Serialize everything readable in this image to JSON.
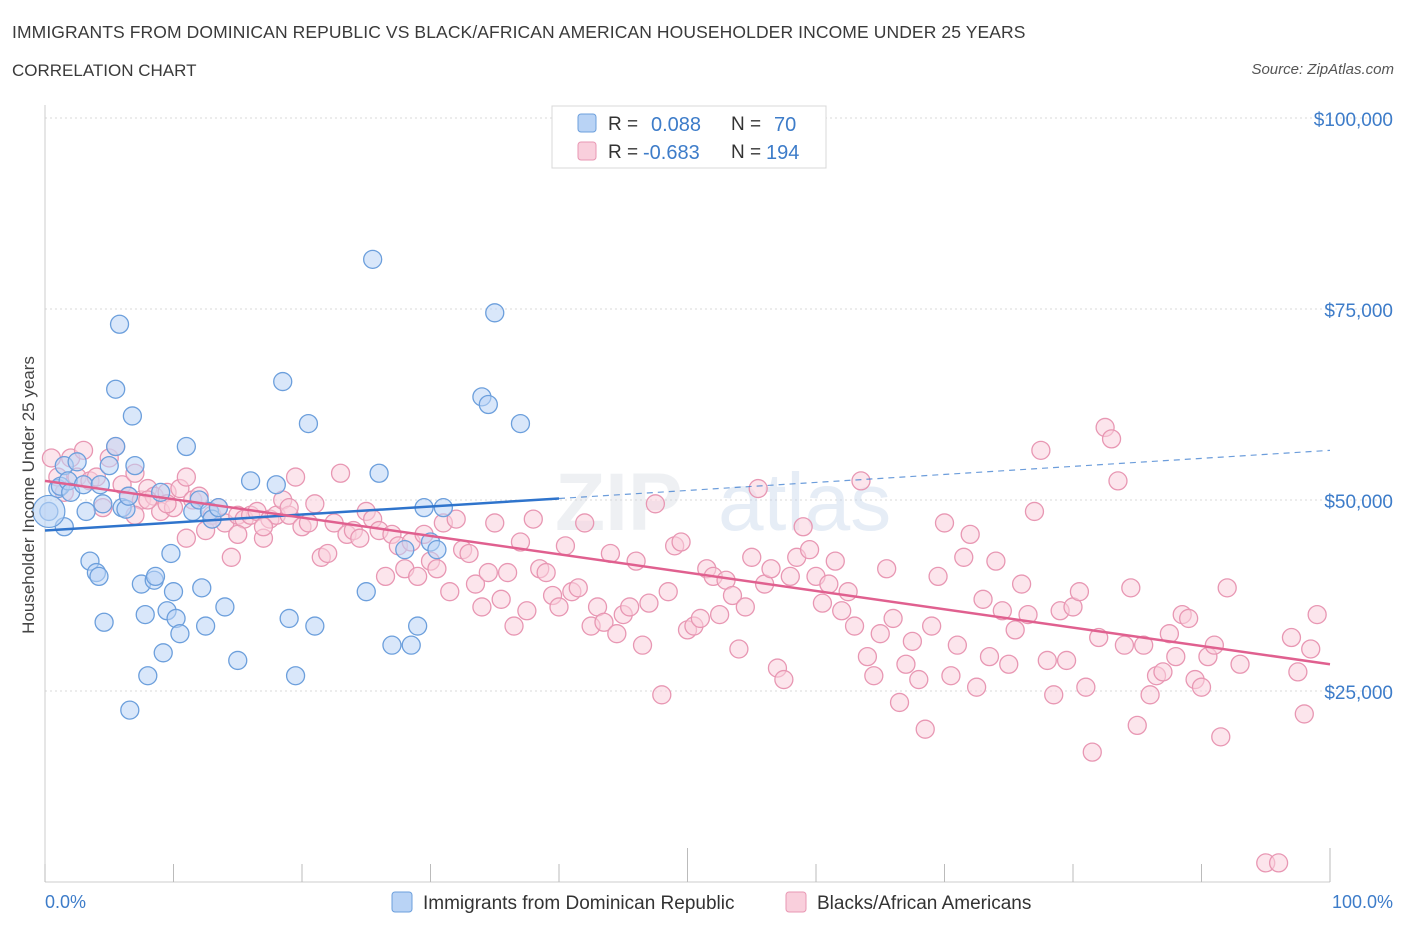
{
  "header": {
    "title": "IMMIGRANTS FROM DOMINICAN REPUBLIC VS BLACK/AFRICAN AMERICAN HOUSEHOLDER INCOME UNDER 25 YEARS",
    "subtitle": "CORRELATION CHART",
    "source": "Source: ZipAtlas.com"
  },
  "colors": {
    "blue_fill": "#b9d3f5",
    "blue_stroke": "#6c9fdc",
    "blue_line": "#2f74cc",
    "pink_fill": "#f9cfdc",
    "pink_stroke": "#e897b3",
    "pink_line": "#e0608f",
    "tick_text": "#3d7cc9",
    "grid": "#d9d9d9"
  },
  "legend": {
    "r_label": "R =",
    "n_label": "N =",
    "blue": {
      "r": "0.088",
      "n": "70"
    },
    "pink": {
      "r": "-0.683",
      "n": "194"
    }
  },
  "watermark": {
    "zip": "ZIP",
    "atlas": "atlas"
  },
  "chart_data": {
    "type": "scatter",
    "title": "IMMIGRANTS FROM DOMINICAN REPUBLIC VS BLACK/AFRICAN AMERICAN HOUSEHOLDER INCOME UNDER 25 YEARS",
    "subtitle": "CORRELATION CHART",
    "xlabel": "",
    "ylabel": "Householder Income Under 25 years",
    "xlim": [
      0,
      100
    ],
    "ylim": [
      0,
      100000
    ],
    "x_tick_labels": [
      "0.0%",
      "100.0%"
    ],
    "y_ticks": [
      25000,
      50000,
      75000,
      100000
    ],
    "y_tick_labels": [
      "$25,000",
      "$50,000",
      "$75,000",
      "$100,000"
    ],
    "grid": true,
    "legend_position": "top-center",
    "series": [
      {
        "name": "Immigrants from Dominican Republic",
        "color": "#6c9fdc",
        "r": 0.088,
        "n": 70,
        "trend": {
          "x": [
            0,
            40
          ],
          "y": [
            46000,
            50200
          ],
          "dashed_to": [
            100,
            56500
          ]
        },
        "points": [
          [
            0.3,
            48500
          ],
          [
            1,
            51500
          ],
          [
            1.2,
            51800
          ],
          [
            1.5,
            54500
          ],
          [
            1.8,
            52500
          ],
          [
            2,
            51000
          ],
          [
            1.5,
            46500
          ],
          [
            2.5,
            55000
          ],
          [
            3,
            52000
          ],
          [
            3.5,
            42000
          ],
          [
            3.2,
            48500
          ],
          [
            4,
            40500
          ],
          [
            4.2,
            40000
          ],
          [
            4.3,
            52000
          ],
          [
            4.5,
            49500
          ],
          [
            4.6,
            34000
          ],
          [
            5,
            54500
          ],
          [
            5.5,
            64500
          ],
          [
            5.5,
            57000
          ],
          [
            5.8,
            73000
          ],
          [
            6,
            49000
          ],
          [
            6.3,
            48800
          ],
          [
            6.5,
            50500
          ],
          [
            6.6,
            22500
          ],
          [
            6.8,
            61000
          ],
          [
            7,
            54500
          ],
          [
            7.5,
            39000
          ],
          [
            7.8,
            35000
          ],
          [
            8,
            27000
          ],
          [
            8.5,
            39500
          ],
          [
            8.6,
            40000
          ],
          [
            9,
            51000
          ],
          [
            9.2,
            30000
          ],
          [
            9.5,
            35500
          ],
          [
            9.8,
            43000
          ],
          [
            10,
            38000
          ],
          [
            10.2,
            34500
          ],
          [
            10.5,
            32500
          ],
          [
            11,
            57000
          ],
          [
            11.5,
            48500
          ],
          [
            12,
            50000
          ],
          [
            12.2,
            38500
          ],
          [
            12.5,
            33500
          ],
          [
            12.8,
            48500
          ],
          [
            13,
            47500
          ],
          [
            13.5,
            49000
          ],
          [
            14,
            36000
          ],
          [
            15,
            29000
          ],
          [
            16,
            52500
          ],
          [
            18,
            52000
          ],
          [
            18.5,
            65500
          ],
          [
            19,
            34500
          ],
          [
            19.5,
            27000
          ],
          [
            20.5,
            60000
          ],
          [
            21,
            33500
          ],
          [
            25,
            38000
          ],
          [
            25.5,
            81500
          ],
          [
            26,
            53500
          ],
          [
            27,
            31000
          ],
          [
            28,
            43500
          ],
          [
            28.5,
            31000
          ],
          [
            29,
            33500
          ],
          [
            29.5,
            49000
          ],
          [
            30,
            44500
          ],
          [
            30.5,
            43500
          ],
          [
            31,
            49000
          ],
          [
            34,
            63500
          ],
          [
            34.5,
            62500
          ],
          [
            35,
            74500
          ],
          [
            37,
            60000
          ]
        ]
      },
      {
        "name": "Blacks/African Americans",
        "color": "#e897b3",
        "r": -0.683,
        "n": 194,
        "trend": {
          "x": [
            0,
            100
          ],
          "y": [
            52500,
            28500
          ]
        },
        "points": [
          [
            0.5,
            55500
          ],
          [
            1,
            53000
          ],
          [
            1.5,
            51000
          ],
          [
            2,
            55500
          ],
          [
            2.5,
            53000
          ],
          [
            3,
            56500
          ],
          [
            3.5,
            52500
          ],
          [
            4,
            53000
          ],
          [
            4.5,
            49000
          ],
          [
            5,
            55500
          ],
          [
            5.5,
            57000
          ],
          [
            6,
            52000
          ],
          [
            6.5,
            50500
          ],
          [
            7,
            53500
          ],
          [
            7.5,
            50000
          ],
          [
            8,
            51500
          ],
          [
            8.5,
            50500
          ],
          [
            9,
            48500
          ],
          [
            9.5,
            51000
          ],
          [
            10,
            49000
          ],
          [
            10.5,
            51500
          ],
          [
            11,
            53000
          ],
          [
            11.5,
            50000
          ],
          [
            12,
            50500
          ],
          [
            12.5,
            46000
          ],
          [
            13,
            48000
          ],
          [
            13.5,
            49000
          ],
          [
            14,
            47000
          ],
          [
            14.5,
            42500
          ],
          [
            15,
            48000
          ],
          [
            15.5,
            47500
          ],
          [
            16,
            48000
          ],
          [
            16.5,
            48500
          ],
          [
            17,
            45000
          ],
          [
            17.5,
            47500
          ],
          [
            18,
            48000
          ],
          [
            18.5,
            50000
          ],
          [
            19,
            48000
          ],
          [
            19.5,
            53000
          ],
          [
            20,
            46500
          ],
          [
            20.5,
            47000
          ],
          [
            21,
            49500
          ],
          [
            21.5,
            42500
          ],
          [
            22,
            43000
          ],
          [
            22.5,
            47000
          ],
          [
            23,
            53500
          ],
          [
            23.5,
            45500
          ],
          [
            24,
            46000
          ],
          [
            24.5,
            45000
          ],
          [
            25,
            48500
          ],
          [
            25.5,
            47500
          ],
          [
            26,
            46000
          ],
          [
            26.5,
            40000
          ],
          [
            27,
            45500
          ],
          [
            27.5,
            44000
          ],
          [
            28,
            41000
          ],
          [
            28.5,
            44500
          ],
          [
            29,
            40000
          ],
          [
            29.5,
            45500
          ],
          [
            30,
            42000
          ],
          [
            30.5,
            41000
          ],
          [
            31,
            47000
          ],
          [
            31.5,
            38000
          ],
          [
            32,
            47500
          ],
          [
            32.5,
            43500
          ],
          [
            33,
            43000
          ],
          [
            33.5,
            39000
          ],
          [
            34,
            36000
          ],
          [
            34.5,
            40500
          ],
          [
            35,
            47000
          ],
          [
            35.5,
            37000
          ],
          [
            36,
            40500
          ],
          [
            36.5,
            33500
          ],
          [
            37,
            44500
          ],
          [
            37.5,
            35500
          ],
          [
            38,
            47500
          ],
          [
            38.5,
            41000
          ],
          [
            39,
            40500
          ],
          [
            39.5,
            37500
          ],
          [
            40,
            36000
          ],
          [
            40.5,
            44000
          ],
          [
            41,
            38000
          ],
          [
            41.5,
            38500
          ],
          [
            42,
            47000
          ],
          [
            42.5,
            33500
          ],
          [
            43,
            36000
          ],
          [
            43.5,
            34000
          ],
          [
            44,
            43000
          ],
          [
            44.5,
            32500
          ],
          [
            45,
            35000
          ],
          [
            45.5,
            36000
          ],
          [
            46,
            42000
          ],
          [
            46.5,
            31000
          ],
          [
            47,
            36500
          ],
          [
            47.5,
            49500
          ],
          [
            48,
            24500
          ],
          [
            48.5,
            38000
          ],
          [
            49,
            44000
          ],
          [
            49.5,
            44500
          ],
          [
            50,
            33000
          ],
          [
            50.5,
            33500
          ],
          [
            51,
            34500
          ],
          [
            51.5,
            41000
          ],
          [
            52,
            40000
          ],
          [
            52.5,
            35000
          ],
          [
            53,
            39500
          ],
          [
            53.5,
            37500
          ],
          [
            54,
            30500
          ],
          [
            54.5,
            36000
          ],
          [
            55,
            42500
          ],
          [
            55.5,
            51500
          ],
          [
            56,
            39000
          ],
          [
            56.5,
            41000
          ],
          [
            57,
            28000
          ],
          [
            57.5,
            26500
          ],
          [
            58,
            40000
          ],
          [
            58.5,
            42500
          ],
          [
            59,
            46500
          ],
          [
            59.5,
            43500
          ],
          [
            60,
            40000
          ],
          [
            60.5,
            36500
          ],
          [
            61,
            39000
          ],
          [
            61.5,
            42000
          ],
          [
            62,
            35500
          ],
          [
            62.5,
            38000
          ],
          [
            63,
            33500
          ],
          [
            63.5,
            52500
          ],
          [
            64,
            29500
          ],
          [
            64.5,
            27000
          ],
          [
            65,
            32500
          ],
          [
            65.5,
            41000
          ],
          [
            66,
            34500
          ],
          [
            66.5,
            23500
          ],
          [
            67,
            28500
          ],
          [
            67.5,
            31500
          ],
          [
            68,
            26500
          ],
          [
            68.5,
            20000
          ],
          [
            69,
            33500
          ],
          [
            69.5,
            40000
          ],
          [
            70,
            47000
          ],
          [
            70.5,
            27000
          ],
          [
            71,
            31000
          ],
          [
            71.5,
            42500
          ],
          [
            72,
            45500
          ],
          [
            72.5,
            25500
          ],
          [
            73,
            37000
          ],
          [
            73.5,
            29500
          ],
          [
            74,
            42000
          ],
          [
            74.5,
            35500
          ],
          [
            75,
            28500
          ],
          [
            75.5,
            33000
          ],
          [
            76,
            39000
          ],
          [
            76.5,
            35000
          ],
          [
            77,
            48500
          ],
          [
            77.5,
            56500
          ],
          [
            78,
            29000
          ],
          [
            78.5,
            24500
          ],
          [
            79,
            35500
          ],
          [
            79.5,
            29000
          ],
          [
            80,
            36000
          ],
          [
            80.5,
            38000
          ],
          [
            81,
            25500
          ],
          [
            81.5,
            17000
          ],
          [
            82,
            32000
          ],
          [
            82.5,
            59500
          ],
          [
            83,
            58000
          ],
          [
            83.5,
            52500
          ],
          [
            84,
            31000
          ],
          [
            84.5,
            38500
          ],
          [
            85,
            20500
          ],
          [
            85.5,
            31000
          ],
          [
            86,
            24500
          ],
          [
            86.5,
            27000
          ],
          [
            87,
            27500
          ],
          [
            87.5,
            32500
          ],
          [
            88,
            29500
          ],
          [
            88.5,
            35000
          ],
          [
            89,
            34500
          ],
          [
            89.5,
            26500
          ],
          [
            90,
            25500
          ],
          [
            90.5,
            29500
          ],
          [
            91,
            31000
          ],
          [
            91.5,
            19000
          ],
          [
            92,
            38500
          ],
          [
            93,
            28500
          ],
          [
            95,
            2500
          ],
          [
            96,
            2500
          ],
          [
            97,
            32000
          ],
          [
            97.5,
            27500
          ],
          [
            98,
            22000
          ],
          [
            98.5,
            30500
          ],
          [
            99,
            35000
          ],
          [
            7,
            48000
          ],
          [
            8,
            50000
          ],
          [
            9.5,
            49500
          ],
          [
            11,
            45000
          ],
          [
            13,
            47500
          ],
          [
            15,
            45500
          ],
          [
            17,
            46500
          ],
          [
            19,
            49000
          ]
        ]
      }
    ]
  }
}
